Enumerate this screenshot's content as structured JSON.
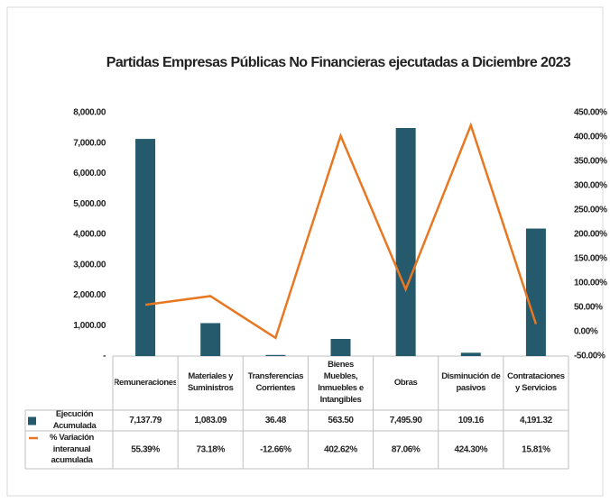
{
  "chart_data": {
    "type": "bar",
    "title": "Partidas Empresas Públicas No Financieras ejecutadas a Diciembre 2023",
    "categories": [
      "Remuneraciones",
      "Materiales y Suministros",
      "Transferencias Corrientes",
      "Bienes Muebles, Inmuebles e Intangibles",
      "Obras",
      "Disminución de pasivos",
      "Contrataciones y Servicios"
    ],
    "series": [
      {
        "name": "Ejecución Acumulada",
        "type": "bar",
        "color": "#245a6b",
        "values": [
          7137.79,
          1083.09,
          36.48,
          563.5,
          7495.9,
          109.16,
          4191.32
        ],
        "value_labels": [
          "7,137.79",
          "1,083.09",
          "36.48",
          "563.50",
          "7,495.90",
          "109.16",
          "4,191.32"
        ]
      },
      {
        "name": "% Variación interanual acumulada",
        "type": "line",
        "axis": "y2",
        "color": "#e87722",
        "values": [
          55.39,
          73.18,
          -12.66,
          402.62,
          87.06,
          424.3,
          15.81
        ],
        "value_labels": [
          "55.39%",
          "73.18%",
          "-12.66%",
          "402.62%",
          "87.06%",
          "424.30%",
          "15.81%"
        ]
      }
    ],
    "ylim": [
      0,
      8000
    ],
    "yticks": [
      {
        "value": 0,
        "label": "-"
      },
      {
        "value": 1000,
        "label": "1,000.00"
      },
      {
        "value": 2000,
        "label": "2,000.00"
      },
      {
        "value": 3000,
        "label": "3,000.00"
      },
      {
        "value": 4000,
        "label": "4,000.00"
      },
      {
        "value": 5000,
        "label": "5,000.00"
      },
      {
        "value": 6000,
        "label": "6,000.00"
      },
      {
        "value": 7000,
        "label": "7,000.00"
      },
      {
        "value": 8000,
        "label": "8,000.00"
      }
    ],
    "y2lim": [
      -50,
      450
    ],
    "y2ticks": [
      {
        "value": -50,
        "label": "-50.00%"
      },
      {
        "value": 0,
        "label": "0.00%"
      },
      {
        "value": 50,
        "label": "50.00%"
      },
      {
        "value": 100,
        "label": "100.00%"
      },
      {
        "value": 150,
        "label": "150.00%"
      },
      {
        "value": 200,
        "label": "200.00%"
      },
      {
        "value": 250,
        "label": "250.00%"
      },
      {
        "value": 300,
        "label": "300.00%"
      },
      {
        "value": 350,
        "label": "350.00%"
      },
      {
        "value": 400,
        "label": "400.00%"
      },
      {
        "value": 450,
        "label": "450.00%"
      }
    ]
  }
}
